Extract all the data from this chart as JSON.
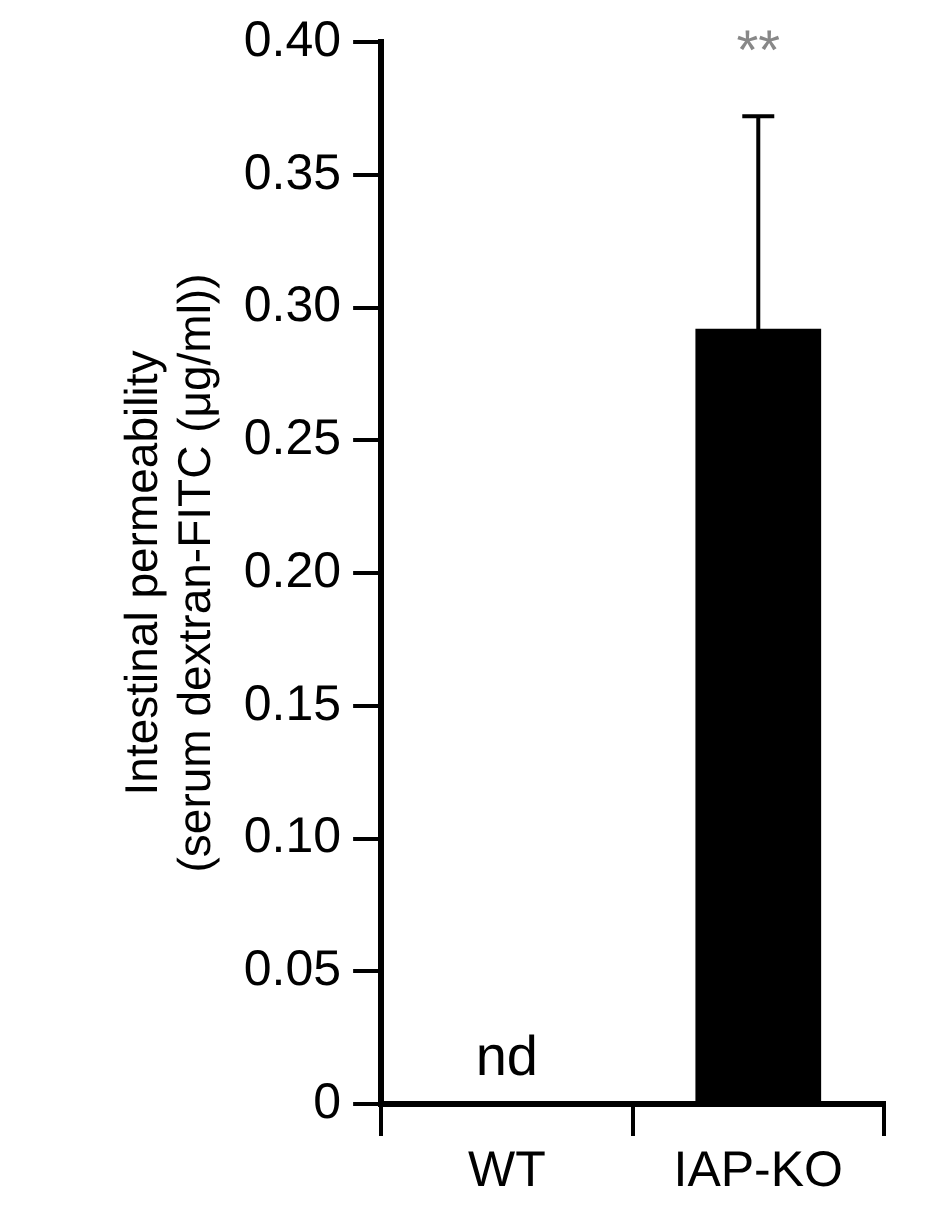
{
  "chart_data": {
    "type": "bar",
    "ylabel": "Intestinal permeability\n(serum dextran-FITC (μg/ml))",
    "categories": [
      "WT",
      "IAP-KO"
    ],
    "values": [
      null,
      0.292
    ],
    "color": "#000000",
    "errors": [
      null,
      0.08
    ],
    "value_labels": [
      "nd",
      null
    ],
    "annotations": [
      "**"
    ],
    "ylim": [
      0,
      0.4
    ],
    "yticks": [
      {
        "value": 0,
        "label": "0"
      },
      {
        "value": 0.05,
        "label": "0.05"
      },
      {
        "value": 0.1,
        "label": "0.10"
      },
      {
        "value": 0.15,
        "label": "0.15"
      },
      {
        "value": 0.2,
        "label": "0.20"
      },
      {
        "value": 0.25,
        "label": "0.25"
      },
      {
        "value": 0.3,
        "label": "0.30"
      },
      {
        "value": 0.35,
        "label": "0.35"
      },
      {
        "value": 0.4,
        "label": "0.40"
      }
    ],
    "grid": false,
    "legend": false
  }
}
